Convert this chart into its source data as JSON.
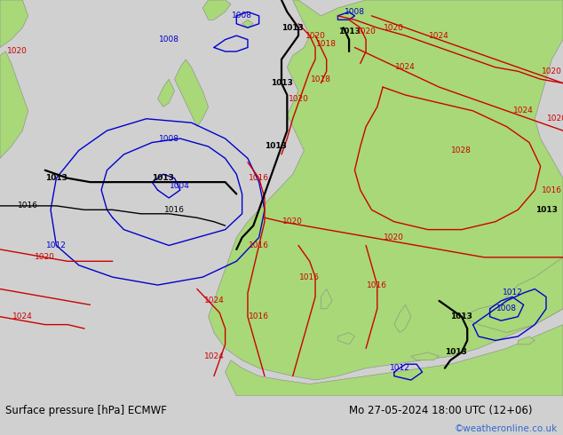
{
  "title_left": "Surface pressure [hPa] ECMWF",
  "title_right": "Mo 27-05-2024 18:00 UTC (12+06)",
  "credit": "©weatheronline.co.uk",
  "bg_ocean": "#e8e8ee",
  "land_color": "#a8d878",
  "land_edge": "#888888",
  "bottom_bar_color": "#d0d0d0",
  "black": "#000000",
  "blue": "#0000cc",
  "red": "#cc0000",
  "credit_color": "#3366cc",
  "figsize": [
    6.34,
    4.9
  ],
  "dpi": 100
}
